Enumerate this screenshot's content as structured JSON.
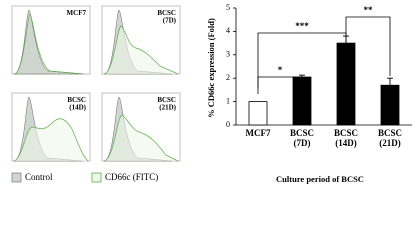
{
  "flow_panels": [
    {
      "label": "MCF7"
    },
    {
      "label": "BCSC (7D)"
    },
    {
      "label": "BCSC (14D)"
    },
    {
      "label": "BCSC (21D)"
    }
  ],
  "legend": {
    "control": "Control",
    "cd66c": "CD66c (FITC)"
  },
  "chart_data": {
    "type": "bar",
    "categories": [
      "MCF7",
      "BCSC (7D)",
      "BCSC (14D)",
      "BCSC (21D)"
    ],
    "values": [
      1.0,
      2.05,
      3.5,
      1.7
    ],
    "errors": [
      null,
      0.08,
      0.3,
      0.3
    ],
    "colors": [
      "#ffffff",
      "#000000",
      "#000000",
      "#000000"
    ],
    "ylim": [
      0,
      5
    ],
    "yticks": [
      0,
      1,
      2,
      3,
      4,
      5
    ],
    "y_label": "% CD66c expression (Fold)",
    "x_label": "Culture period of BCSC",
    "annotations": [
      "*",
      "***",
      "**"
    ]
  }
}
